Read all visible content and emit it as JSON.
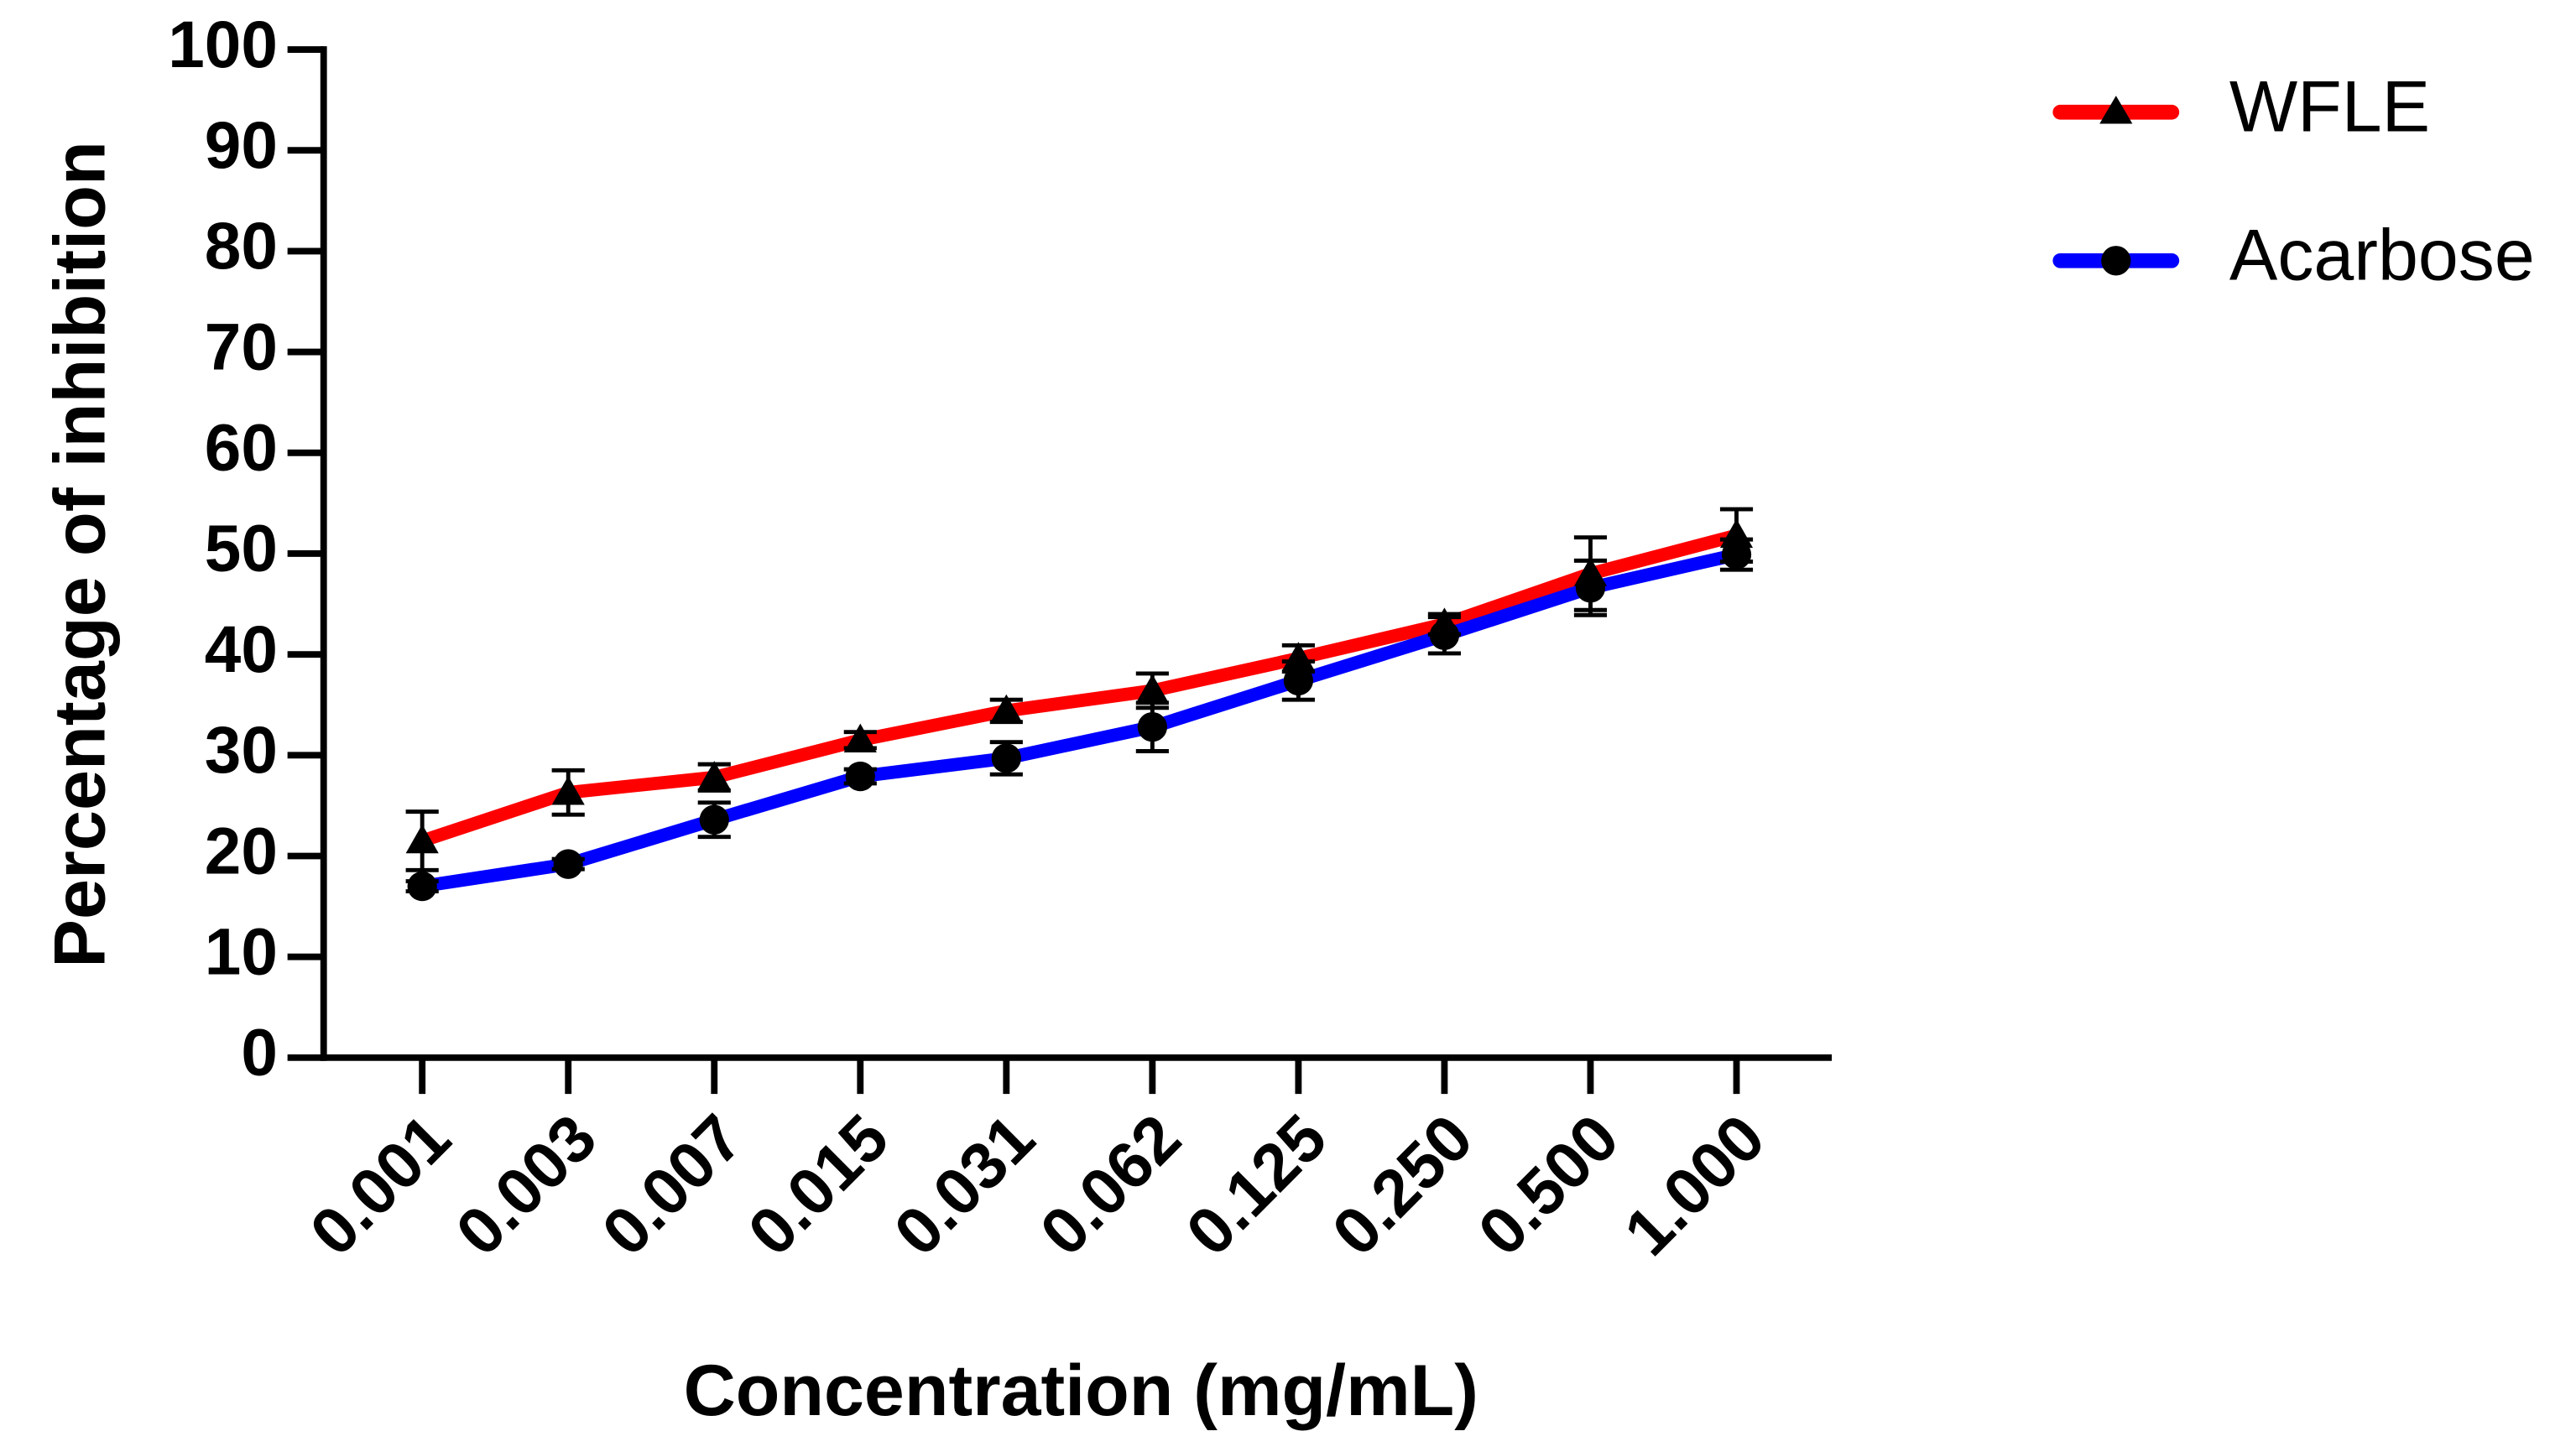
{
  "chart_data": {
    "type": "line",
    "x_label": "Concentration (mg/mL)",
    "y_label": "Percentage of inhibition",
    "categories": [
      "0.001",
      "0.003",
      "0.007",
      "0.015",
      "0.031",
      "0.062",
      "0.125",
      "0.250",
      "0.500",
      "1.000"
    ],
    "series": [
      {
        "name": "WFLE",
        "color": "#ff0000",
        "marker": "triangle",
        "values": [
          21.5,
          26.3,
          27.8,
          31.5,
          34.4,
          36.4,
          39.6,
          43.0,
          48.0,
          51.8
        ],
        "errors": [
          2.9,
          2.2,
          1.3,
          0.8,
          1.1,
          1.7,
          1.3,
          1.0,
          3.6,
          2.6
        ]
      },
      {
        "name": "Acarbose",
        "color": "#0000ff",
        "marker": "circle",
        "values": [
          17.0,
          19.2,
          23.6,
          27.9,
          29.7,
          32.8,
          37.4,
          41.9,
          46.6,
          49.9
        ],
        "errors": [
          0.5,
          0.5,
          1.7,
          0.7,
          1.6,
          2.4,
          1.9,
          1.8,
          2.7,
          1.5
        ]
      }
    ],
    "ylim": [
      0,
      100
    ],
    "yticks": [
      0,
      10,
      20,
      30,
      40,
      50,
      60,
      70,
      80,
      90,
      100
    ],
    "legend": "right"
  }
}
